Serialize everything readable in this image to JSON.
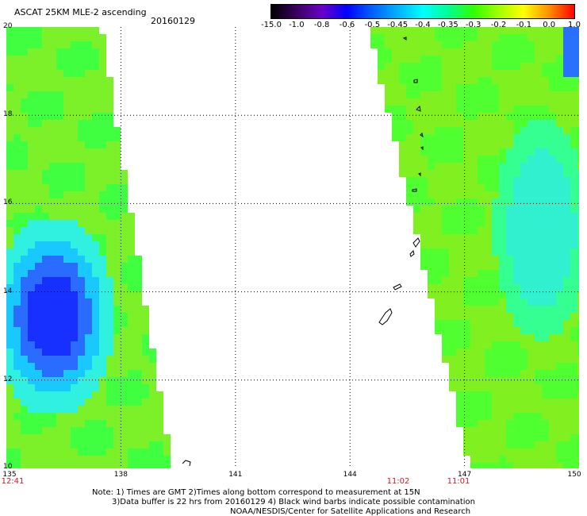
{
  "header": {
    "title": "ASCAT 25KM MLE-2 ascending",
    "date": "20160129"
  },
  "colorbar": {
    "labels": [
      "-15.0",
      "-1.0",
      "-0.8",
      "-0.6",
      "-0.5",
      "-0.45",
      "-0.4",
      "-0.35",
      "-0.3",
      "-0.2",
      "-0.1",
      "0.0",
      "1.0"
    ],
    "colors": [
      "#000000",
      "#3a0060",
      "#6a00c8",
      "#0000ff",
      "#0060ff",
      "#00b0ff",
      "#00ffff",
      "#00ff90",
      "#30ff00",
      "#a0ff00",
      "#ffff00",
      "#ff9000",
      "#ff0000"
    ]
  },
  "map": {
    "lat_labels": [
      "20",
      "18",
      "16",
      "14",
      "12",
      "10"
    ],
    "lon_labels": [
      "135",
      "138",
      "141",
      "144",
      "147",
      "150"
    ],
    "lat_range": [
      10,
      20
    ],
    "lon_range": [
      135,
      150
    ],
    "swath_times": [
      "12:41",
      "11:02",
      "11:01"
    ]
  },
  "footer": {
    "line1": "Note: 1) Times are GMT 2)Times along bottom correspond to measurement at 15N",
    "line2": "3)Data buffer is 22 hrs from 20160129 4) Black wind barbs indicate possible contamination",
    "line3": "NOAA/NESDIS/Center for Satellite Applications and Research"
  }
}
